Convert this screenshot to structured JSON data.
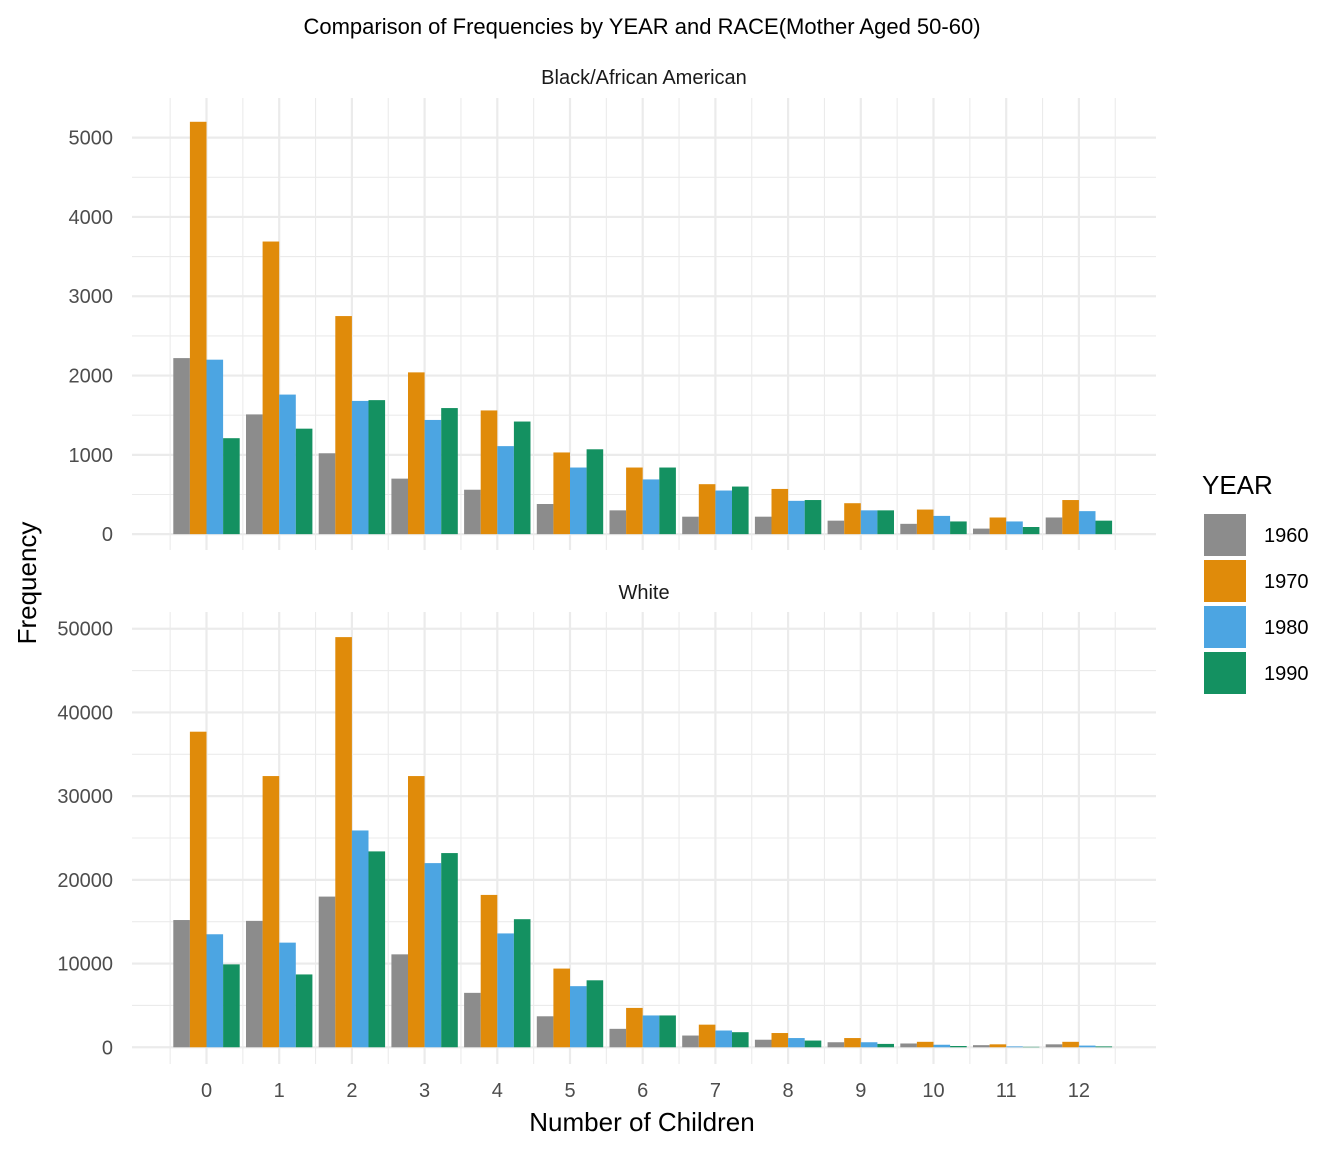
{
  "chart_data": {
    "type": "bar",
    "title": "Comparison of Frequencies by YEAR and RACE(Mother Aged 50-60)",
    "xlabel": "Number of Children",
    "ylabel": "Frequency",
    "categories": [
      "0",
      "1",
      "2",
      "3",
      "4",
      "5",
      "6",
      "7",
      "8",
      "9",
      "10",
      "11",
      "12"
    ],
    "legend": {
      "title": "YEAR",
      "placement": "right",
      "entries": [
        {
          "name": "1960",
          "color": "#8c8c8c"
        },
        {
          "name": "1970",
          "color": "#e08b0a"
        },
        {
          "name": "1980",
          "color": "#4ca5e2"
        },
        {
          "name": "1990",
          "color": "#149161"
        }
      ]
    },
    "panels": [
      {
        "strip": "Black/African American",
        "ylim": [
          -200,
          5500
        ],
        "yticks": [
          0,
          1000,
          2000,
          3000,
          4000,
          5000
        ],
        "ytick_labels": [
          "0",
          "1000",
          "2000",
          "3000",
          "4000",
          "5000"
        ],
        "series": [
          {
            "name": "1960",
            "values": [
              2220,
              1510,
              1020,
              700,
              560,
              380,
              300,
              220,
              220,
              170,
              130,
              70,
              210
            ]
          },
          {
            "name": "1970",
            "values": [
              5200,
              3690,
              2750,
              2040,
              1560,
              1030,
              840,
              630,
              570,
              390,
              310,
              210,
              430
            ]
          },
          {
            "name": "1980",
            "values": [
              2200,
              1760,
              1680,
              1440,
              1110,
              840,
              690,
              550,
              420,
              300,
              230,
              160,
              290
            ]
          },
          {
            "name": "1990",
            "values": [
              1210,
              1330,
              1690,
              1590,
              1420,
              1070,
              840,
              600,
              430,
              300,
              160,
              90,
              170
            ]
          }
        ]
      },
      {
        "strip": "White",
        "ylim": [
          -2000,
          52000
        ],
        "yticks": [
          0,
          10000,
          20000,
          30000,
          40000,
          50000
        ],
        "ytick_labels": [
          "0",
          "10000",
          "20000",
          "30000",
          "40000",
          "50000"
        ],
        "series": [
          {
            "name": "1960",
            "values": [
              15200,
              15100,
              18000,
              11100,
              6500,
              3700,
              2200,
              1400,
              900,
              600,
              450,
              250,
              350
            ]
          },
          {
            "name": "1970",
            "values": [
              37700,
              32400,
              49000,
              32400,
              18200,
              9400,
              4700,
              2700,
              1700,
              1100,
              650,
              350,
              650
            ]
          },
          {
            "name": "1980",
            "values": [
              13500,
              12500,
              25900,
              22000,
              13600,
              7300,
              3800,
              2000,
              1100,
              600,
              300,
              100,
              200
            ]
          },
          {
            "name": "1990",
            "values": [
              9900,
              8700,
              23400,
              23200,
              15300,
              8000,
              3800,
              1800,
              800,
              400,
              150,
              50,
              100
            ]
          }
        ]
      }
    ]
  }
}
